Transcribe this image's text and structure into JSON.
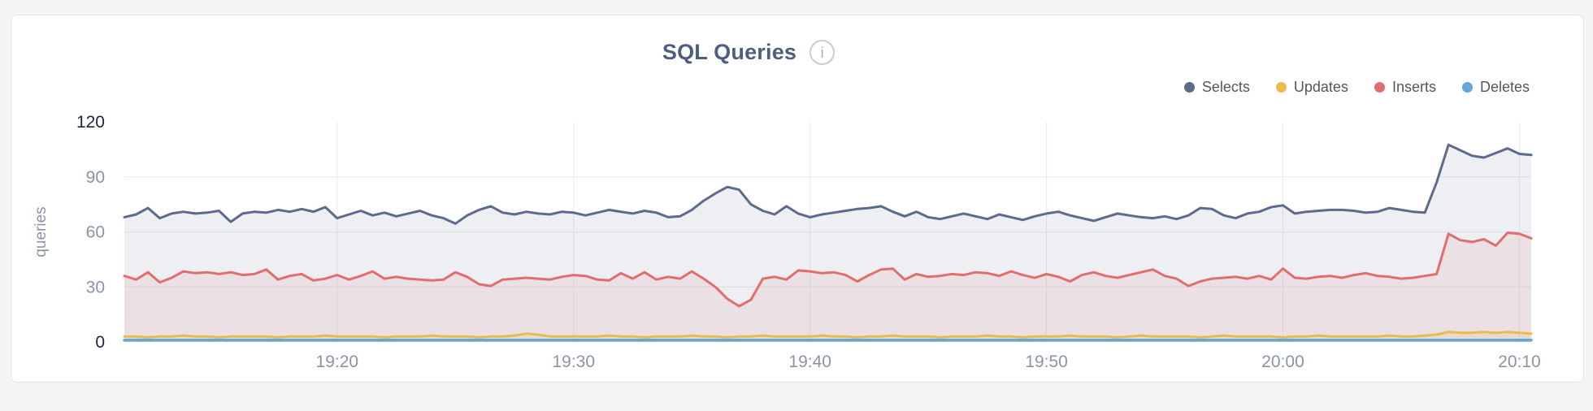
{
  "header": {
    "title": "SQL Queries",
    "info_glyph": "i"
  },
  "colors": {
    "page_background": "#f5f5f7",
    "card_background": "#ffffff",
    "card_border": "#e2e3e7",
    "title": "#4e5e7e",
    "grid": "#eaebee",
    "axis_tick": "#8b94a7",
    "axis_tick_strong": "#1b2540",
    "legend_text": "#55565a",
    "selects": "#5c6b8c",
    "updates": "#e9bc4f",
    "inserts": "#e26d6d",
    "deletes": "#64a7d9"
  },
  "chart_data": {
    "type": "area",
    "title": "SQL Queries",
    "ylabel": "queries",
    "xlabel": "",
    "ylim": [
      0,
      120
    ],
    "y_ticks": [
      0,
      30,
      60,
      90,
      120
    ],
    "grid": true,
    "legend_position": "top-right",
    "x_start": "19:11:00",
    "x_interval_seconds": 30,
    "x_tick_labels": [
      "19:20",
      "19:30",
      "19:40",
      "19:50",
      "20:00",
      "20:10"
    ],
    "x_tick_indices": [
      18,
      38,
      58,
      78,
      98,
      118
    ],
    "series": [
      {
        "name": "Selects",
        "color": "#5c6b8c",
        "fill_opacity": 0.11,
        "line_width": 3,
        "values": [
          68,
          69.5,
          73,
          67.5,
          70,
          71,
          70,
          70.5,
          71.5,
          65.5,
          70,
          71,
          70.5,
          72,
          71,
          72.5,
          71,
          73.5,
          67.5,
          69.5,
          71.5,
          69,
          70.5,
          68.5,
          70,
          71.5,
          69,
          67.5,
          64.5,
          69,
          72,
          74,
          70.5,
          69.5,
          71,
          70,
          69.5,
          71,
          70.5,
          69,
          70.5,
          72,
          71,
          70,
          71.5,
          70.5,
          68,
          68.5,
          72,
          77,
          81,
          84.5,
          83,
          75,
          71.5,
          69.5,
          74,
          70,
          68,
          69.5,
          70.5,
          71.5,
          72.5,
          73,
          74,
          71,
          68.5,
          71,
          68,
          67,
          68.5,
          70,
          68.5,
          67,
          69.5,
          68,
          66.5,
          68.5,
          70,
          71,
          69,
          67.5,
          66,
          68,
          70,
          69,
          68,
          67.5,
          68.5,
          67,
          69,
          73,
          72.5,
          69,
          67.5,
          70,
          71,
          73.5,
          74.5,
          70,
          71,
          71.5,
          72,
          72,
          71.5,
          70.5,
          71,
          73,
          72,
          71,
          70.5,
          87,
          107.5,
          104.5,
          101.5,
          100.5,
          103,
          105.5,
          102.5,
          102
        ]
      },
      {
        "name": "Updates",
        "color": "#e9bc4f",
        "fill_opacity": 0.18,
        "line_width": 3,
        "values": [
          3,
          3,
          2.5,
          3,
          3,
          3.5,
          3,
          3,
          2.5,
          3,
          3,
          3,
          3,
          2.5,
          3,
          3,
          3,
          3.5,
          3,
          3,
          3,
          3,
          2.5,
          3,
          3,
          3,
          3.5,
          3,
          3,
          3,
          2.5,
          3,
          3,
          3.5,
          4.5,
          4,
          3,
          3,
          3,
          3,
          3,
          3.5,
          3,
          3,
          2.5,
          3,
          3,
          3,
          3.5,
          3,
          3,
          2.5,
          3,
          3,
          3.5,
          3,
          3,
          3,
          3,
          3.5,
          3,
          3,
          2.5,
          3,
          3,
          3.5,
          3,
          3,
          3,
          2.5,
          3,
          3,
          3,
          3.5,
          3,
          3,
          2.5,
          3,
          3,
          3,
          3.5,
          3,
          3,
          3,
          2.5,
          3,
          3.5,
          3,
          3,
          3,
          3,
          2.5,
          3,
          3.5,
          3,
          3,
          3,
          3,
          2.5,
          3,
          3,
          3.5,
          3,
          3,
          3,
          3,
          3,
          3.5,
          3,
          3,
          3.5,
          4,
          5.5,
          5,
          5,
          5.5,
          5,
          5.5,
          5,
          4.5
        ]
      },
      {
        "name": "Inserts",
        "color": "#e26d6d",
        "fill_opacity": 0.1,
        "line_width": 3,
        "values": [
          36,
          34,
          38,
          32.5,
          35,
          38.5,
          37.5,
          38,
          37,
          38,
          36.5,
          37,
          39.5,
          34,
          36,
          37,
          33.5,
          34.5,
          36.5,
          34,
          36,
          38.5,
          34.5,
          35.5,
          34.5,
          34,
          33.5,
          34,
          38,
          35.5,
          31.5,
          30.5,
          34,
          34.5,
          35,
          34.5,
          34,
          35.5,
          36.5,
          36,
          34,
          33.5,
          37.5,
          34.5,
          38,
          34,
          35.5,
          34.5,
          38.5,
          34.5,
          30,
          23.5,
          19.5,
          23,
          34.5,
          35.5,
          34,
          39,
          38.5,
          37.5,
          38,
          36.5,
          33,
          36.5,
          39.5,
          40,
          34,
          37,
          35.5,
          36,
          37,
          36.5,
          38,
          37.5,
          36,
          38.5,
          36.5,
          35,
          37,
          35.5,
          33,
          36.5,
          38,
          36,
          35,
          36.5,
          38,
          39.5,
          36,
          34.5,
          30.5,
          33,
          34.5,
          35,
          35.5,
          34.5,
          36,
          34,
          40,
          35,
          34.5,
          35.5,
          36,
          35,
          36.5,
          37.5,
          36,
          35.5,
          34.5,
          35,
          36,
          37,
          59,
          55.5,
          54.5,
          56,
          52.5,
          59.5,
          59,
          56.5
        ]
      },
      {
        "name": "Deletes",
        "color": "#64a7d9",
        "fill_opacity": 0.2,
        "line_width": 3.5,
        "values": [
          1,
          1,
          1,
          1,
          1,
          1,
          1,
          1,
          1,
          1,
          1,
          1,
          1,
          1,
          1,
          1,
          1,
          1,
          1,
          1,
          1,
          1,
          1,
          1,
          1,
          1,
          1,
          1,
          1,
          1,
          1,
          1,
          1,
          1,
          1,
          1,
          1,
          1,
          1,
          1,
          1,
          1,
          1,
          1,
          1,
          1,
          1,
          1,
          1,
          1,
          1,
          1,
          1,
          1,
          1,
          1,
          1,
          1,
          1,
          1,
          1,
          1,
          1,
          1,
          1,
          1,
          1,
          1,
          1,
          1,
          1,
          1,
          1,
          1,
          1,
          1,
          1,
          1,
          1,
          1,
          1,
          1,
          1,
          1,
          1,
          1,
          1,
          1,
          1,
          1,
          1,
          1,
          1,
          1,
          1,
          1,
          1,
          1,
          1,
          1,
          1,
          1,
          1,
          1,
          1,
          1,
          1,
          1,
          1,
          1,
          1,
          1,
          1,
          1,
          1,
          1,
          1,
          1,
          1,
          1
        ]
      }
    ]
  }
}
